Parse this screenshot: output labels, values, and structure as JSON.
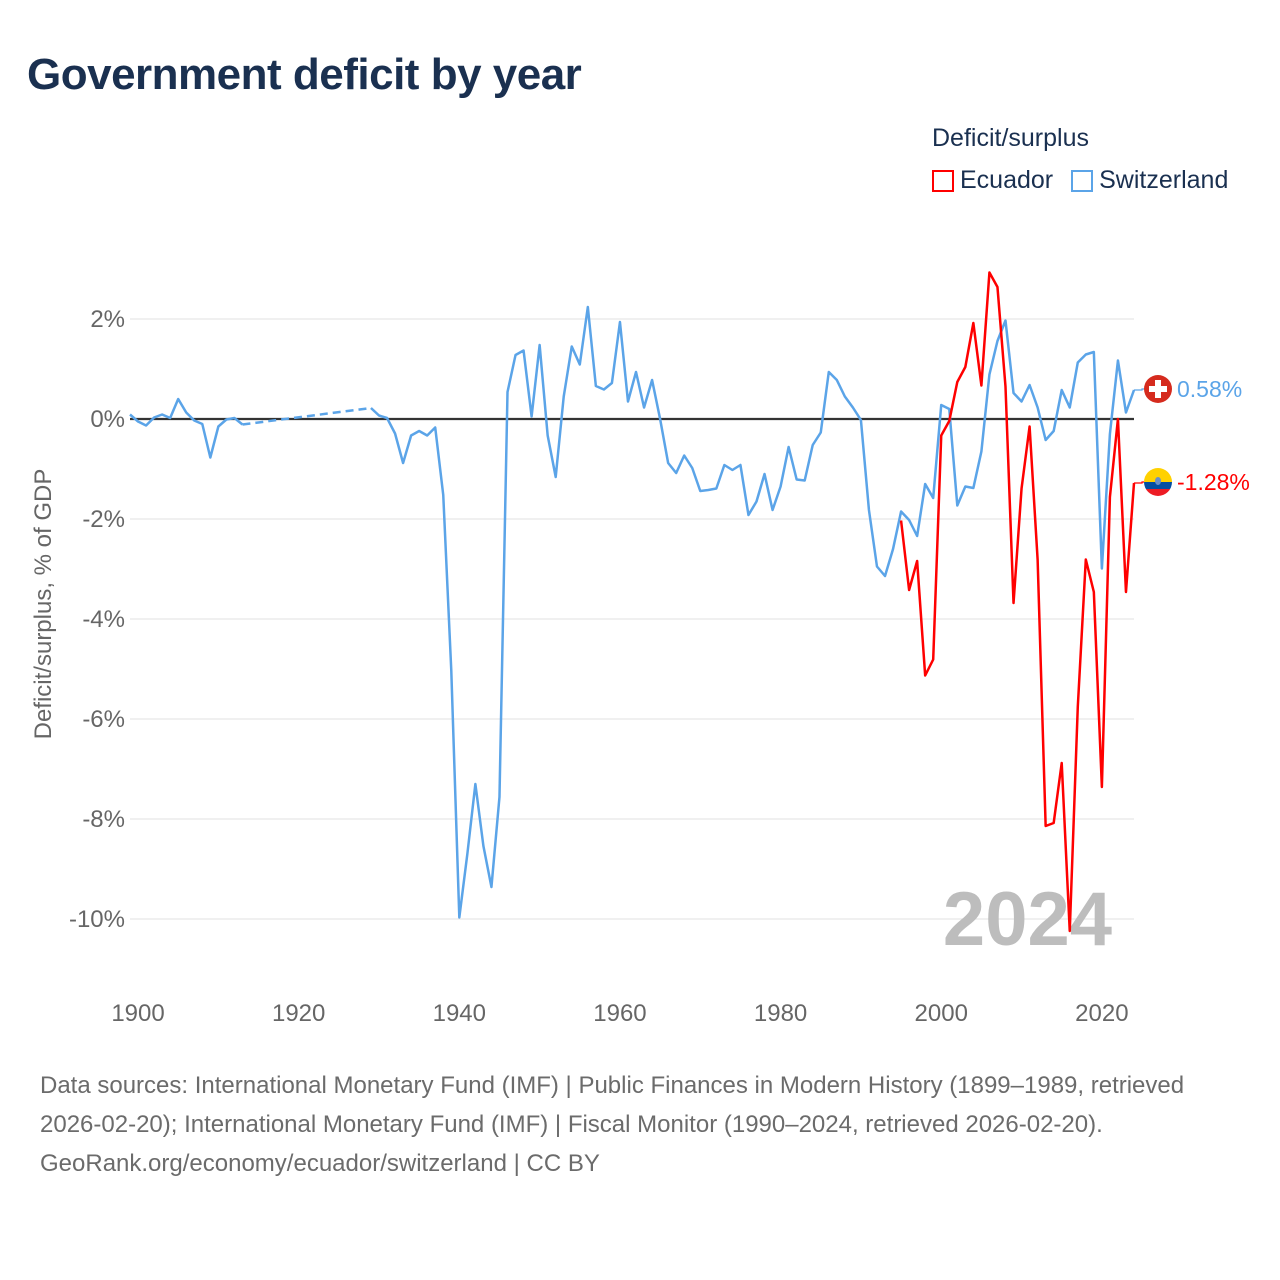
{
  "title": "Government deficit by year",
  "legend": {
    "title": "Deficit/surplus",
    "items": [
      {
        "name": "Ecuador",
        "color": "#ff0000"
      },
      {
        "name": "Switzerland",
        "color": "#5ba4e8"
      }
    ]
  },
  "footer": {
    "sources": "Data sources: International Monetary Fund (IMF) | Public Finances in Modern History (1899–1989, retrieved 2026-02-20); International Monetary Fund (IMF) | Fiscal Monitor (1990–2024, retrieved 2026-02-20).",
    "credit": "GeoRank.org/economy/ecuador/switzerland | CC BY"
  },
  "chart_data": {
    "type": "line",
    "title": "Government deficit by year",
    "xlabel": "",
    "ylabel": "Deficit/surplus, % of GDP",
    "xlim": [
      1899,
      2024
    ],
    "ylim": [
      -11.2,
      3.2
    ],
    "x_ticks": [
      1900,
      1920,
      1940,
      1960,
      1980,
      2000,
      2020
    ],
    "x_tick_labels": [
      "1900",
      "1920",
      "1940",
      "1960",
      "1980",
      "2000",
      "2020"
    ],
    "y_ticks": [
      2,
      0,
      -2,
      -4,
      -6,
      -8,
      -10
    ],
    "y_tick_labels": [
      "2%",
      "0%",
      "-2%",
      "-4%",
      "-6%",
      "-8%",
      "-10%"
    ],
    "grid": true,
    "legend_position": "top-right",
    "year_watermark": "2024",
    "series": [
      {
        "name": "Switzerland",
        "color": "#5ba4e8",
        "end_label": "0.58%",
        "flag": "switzerland-flag",
        "start_year": 1899,
        "values": [
          0.09,
          -0.05,
          -0.13,
          0.03,
          0.09,
          0.02,
          0.4,
          0.13,
          -0.03,
          -0.1,
          -0.77,
          -0.15,
          -0.01,
          0.02,
          -0.11,
          null,
          null,
          null,
          null,
          null,
          null,
          null,
          null,
          null,
          null,
          null,
          null,
          null,
          null,
          null,
          0.22,
          0.07,
          0.02,
          -0.29,
          -0.88,
          -0.33,
          -0.24,
          -0.33,
          -0.17,
          -1.52,
          -5.03,
          -9.97,
          -8.7,
          -7.3,
          -8.54,
          -9.36,
          -7.56,
          0.54,
          1.28,
          1.37,
          0.05,
          1.48,
          -0.33,
          -1.16,
          0.45,
          1.45,
          1.09,
          2.24,
          0.66,
          0.59,
          0.72,
          1.94,
          0.35,
          0.94,
          0.23,
          0.78,
          0.0,
          -0.88,
          -1.08,
          -0.73,
          -0.98,
          -1.44,
          -1.42,
          -1.39,
          -0.92,
          -1.02,
          -0.92,
          -1.92,
          -1.65,
          -1.1,
          -1.82,
          -1.35,
          -0.56,
          -1.21,
          -1.23,
          -0.52,
          -0.27,
          0.94,
          0.78,
          0.45,
          0.23,
          -0.02,
          -1.82,
          -2.95,
          -3.14,
          -2.6,
          -1.85,
          -2.02,
          -2.34,
          -1.3,
          -1.58,
          0.28,
          0.2,
          -1.73,
          -1.35,
          -1.38,
          -0.65,
          0.89,
          1.56,
          1.97,
          0.52,
          0.35,
          0.68,
          0.23,
          -0.42,
          -0.24,
          0.58,
          0.23,
          1.13,
          1.29,
          1.34,
          -2.99,
          -0.3,
          1.17,
          0.13,
          0.58
        ]
      },
      {
        "name": "Ecuador",
        "color": "#ff0000",
        "end_label": "-1.28%",
        "flag": "ecuador-flag",
        "start_year": 1995,
        "values": [
          -2.03,
          -3.42,
          -2.84,
          -5.13,
          -4.81,
          -0.33,
          -0.04,
          0.74,
          1.04,
          1.92,
          0.67,
          2.93,
          2.64,
          0.65,
          -3.68,
          -1.39,
          -0.15,
          -2.81,
          -8.14,
          -8.08,
          -6.88,
          -10.24,
          -5.76,
          -2.81,
          -3.46,
          -7.36,
          -1.56,
          0.0,
          -3.46,
          -1.28
        ]
      }
    ]
  }
}
